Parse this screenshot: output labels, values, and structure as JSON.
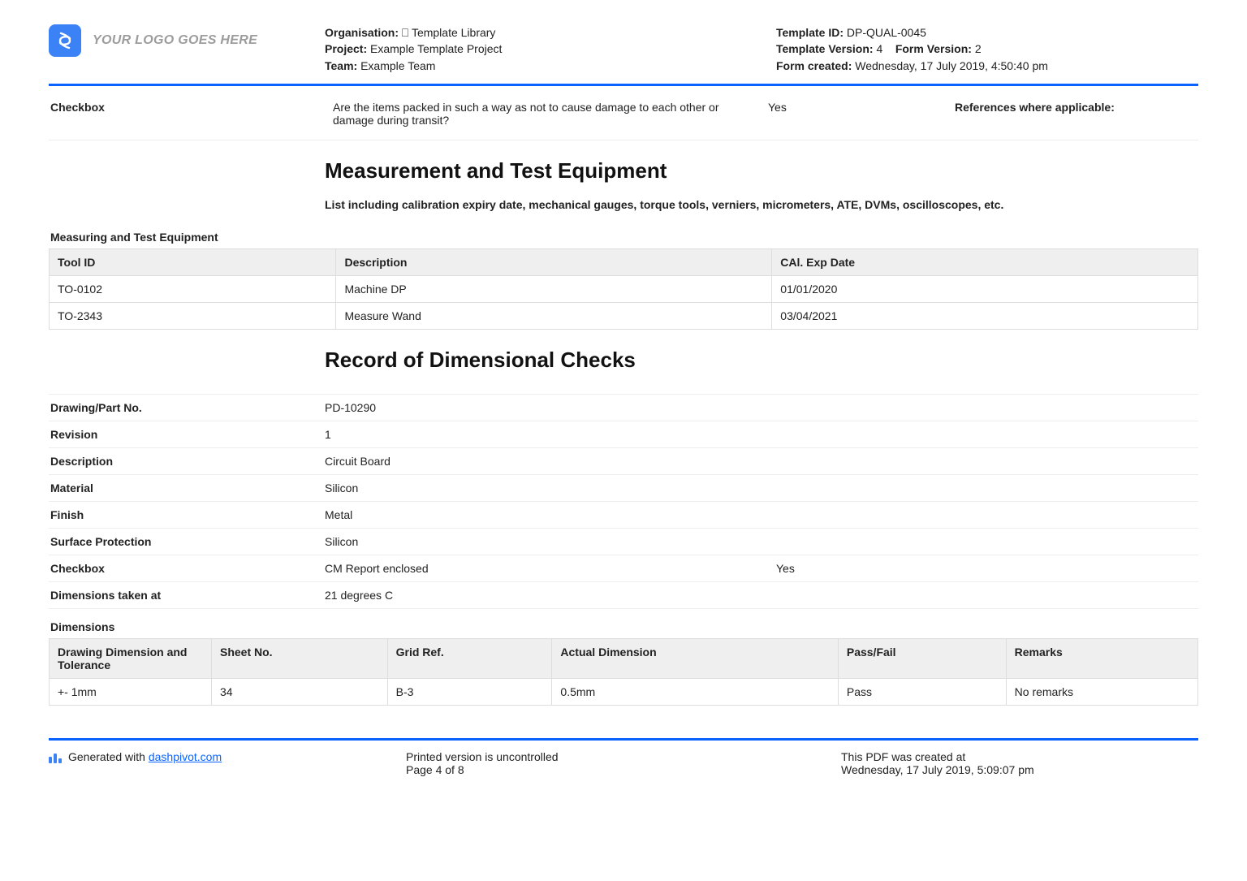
{
  "logo_placeholder": "YOUR LOGO GOES HERE",
  "header": {
    "org_label": "Organisation:",
    "org_value": "⎕ Template Library",
    "project_label": "Project:",
    "project_value": "Example Template Project",
    "team_label": "Team:",
    "team_value": "Example Team",
    "template_id_label": "Template ID:",
    "template_id_value": "DP-QUAL-0045",
    "template_version_label": "Template Version:",
    "template_version_value": "4",
    "form_version_label": "Form Version:",
    "form_version_value": "2",
    "form_created_label": "Form created:",
    "form_created_value": "Wednesday, 17 July 2019, 4:50:40 pm"
  },
  "checkbox_top": {
    "label": "Checkbox",
    "question": "Are the items packed in such a way as not to cause damage to each other or damage during transit?",
    "answer": "Yes",
    "ref_label": "References where applicable:"
  },
  "section1": {
    "title": "Measurement and Test Equipment",
    "subtitle": "List including calibration expiry date, mechanical gauges, torque tools, verniers, micrometers, ATE, DVMs, oscilloscopes, etc."
  },
  "equip": {
    "caption": "Measuring and Test Equipment",
    "columns": [
      "Tool ID",
      "Description",
      "CAl. Exp Date"
    ],
    "rows": [
      [
        "TO-0102",
        "Machine DP",
        "01/01/2020"
      ],
      [
        "TO-2343",
        "Measure Wand",
        "03/04/2021"
      ]
    ]
  },
  "section2": {
    "title": "Record of Dimensional Checks"
  },
  "record": {
    "rows": [
      {
        "k": "Drawing/Part No.",
        "v": "PD-10290"
      },
      {
        "k": "Revision",
        "v": "1"
      },
      {
        "k": "Description",
        "v": "Circuit Board"
      },
      {
        "k": "Material",
        "v": "Silicon"
      },
      {
        "k": "Finish",
        "v": "Metal"
      },
      {
        "k": "Surface Protection",
        "v": "Silicon"
      },
      {
        "k": "Checkbox",
        "v": "CM Report enclosed",
        "extra": "Yes"
      },
      {
        "k": "Dimensions taken at",
        "v": "21 degrees C"
      }
    ]
  },
  "dimensions": {
    "caption": "Dimensions",
    "columns": [
      "Drawing Dimension and Tolerance",
      "Sheet No.",
      "Grid Ref.",
      "Actual Dimension",
      "Pass/Fail",
      "Remarks"
    ],
    "rows": [
      [
        "+- 1mm",
        "34",
        "B-3",
        "0.5mm",
        "Pass",
        "No remarks"
      ]
    ]
  },
  "footer": {
    "generated_prefix": "Generated with ",
    "generated_link": "dashpivot.com",
    "printed": "Printed version is uncontrolled",
    "page": "Page 4 of 8",
    "created_label": "This PDF was created at",
    "created_value": "Wednesday, 17 July 2019, 5:09:07 pm"
  }
}
